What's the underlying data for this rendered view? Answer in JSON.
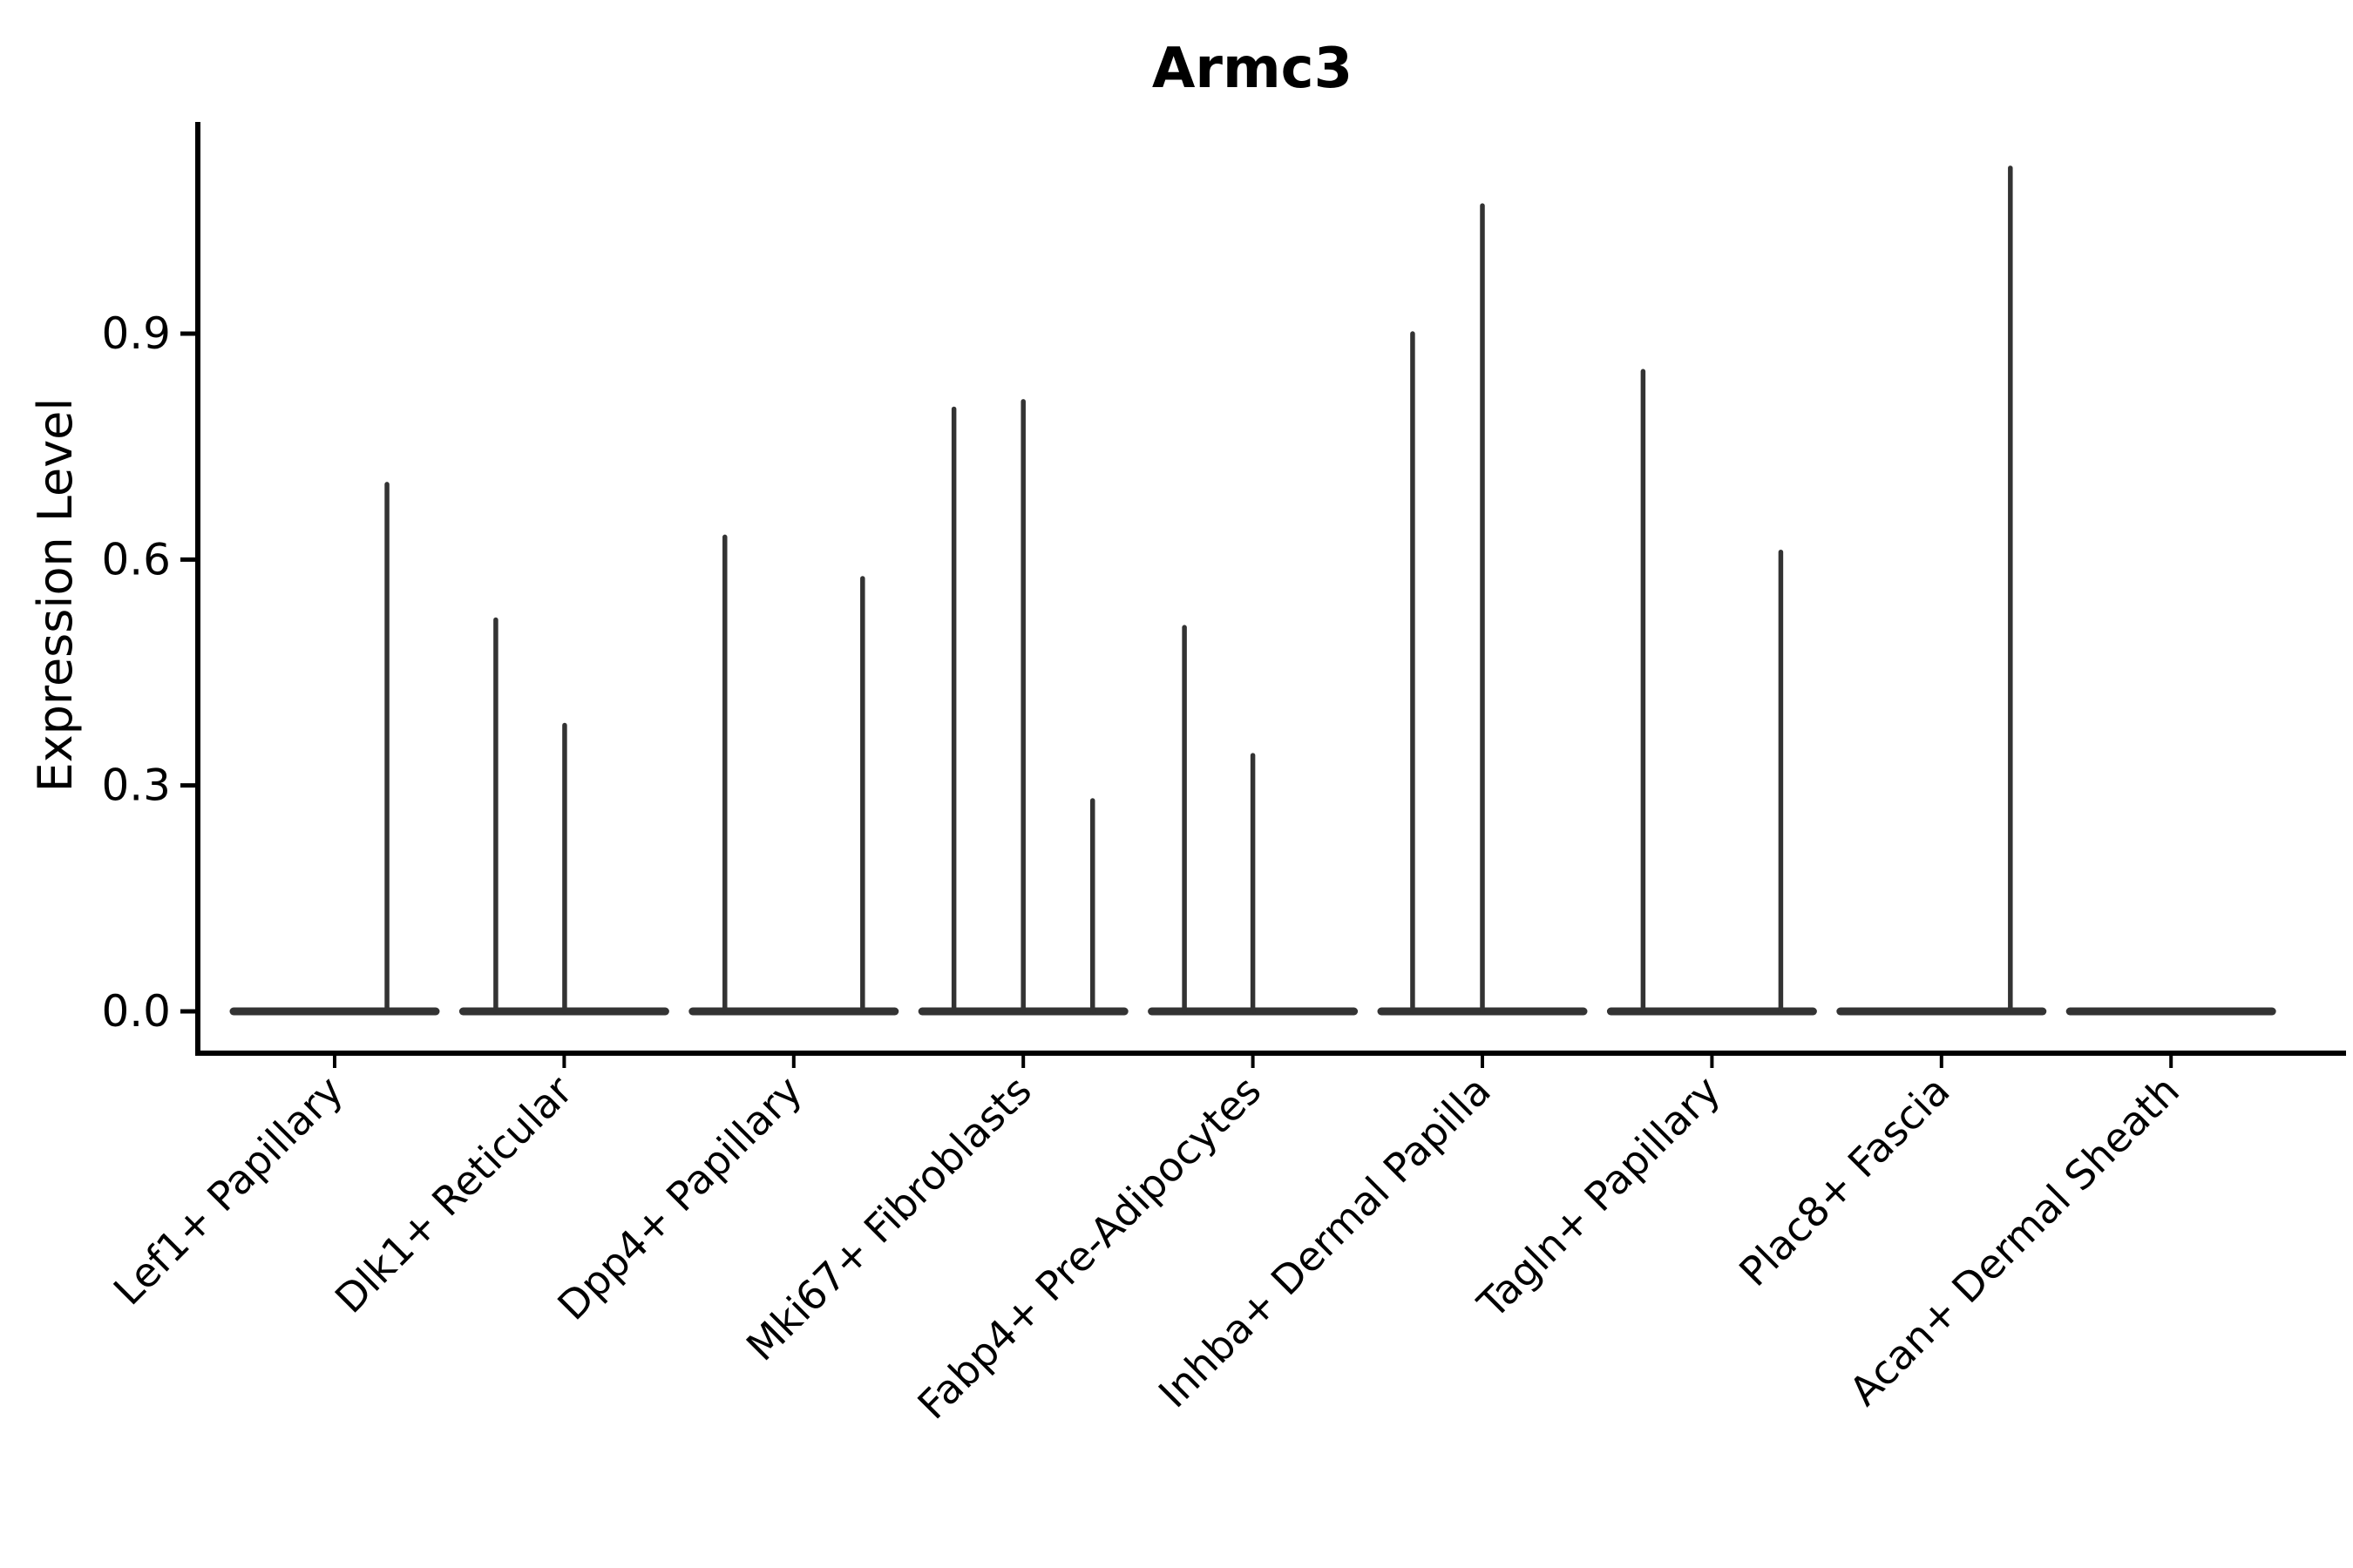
{
  "chart_data": {
    "type": "violin",
    "title": "Armc3",
    "ylabel": "Expression Level",
    "xlabel": "",
    "legend": "none",
    "grid": false,
    "ylim": [
      -0.055,
      1.18
    ],
    "yticks": [
      {
        "label": "0.0",
        "value": 0.0
      },
      {
        "label": "0.3",
        "value": 0.3
      },
      {
        "label": "0.6",
        "value": 0.6
      },
      {
        "label": "0.9",
        "value": 0.9
      }
    ],
    "categories": [
      "Lef1+ Papillary",
      "Dlk1+ Reticular",
      "Dpp4+ Papillary",
      "Mki67+ Fibroblasts",
      "Fabp4+ Pre-Adipocytes",
      "Inhba+ Dermal Papilla",
      "Tagln+ Papillary",
      "Plac8+ Fascia",
      "Acan+ Dermal Sheath"
    ],
    "groups": [
      {
        "category": "Lef1+ Papillary",
        "base_value": 0.0,
        "spikes": [
          {
            "dx": 0.228,
            "value": 0.7
          }
        ]
      },
      {
        "category": "Dlk1+ Reticular",
        "base_value": 0.0,
        "spikes": [
          {
            "dx": -0.298,
            "value": 0.52
          },
          {
            "dx": 0.002,
            "value": 0.38
          }
        ]
      },
      {
        "category": "Dpp4+ Papillary",
        "base_value": 0.0,
        "spikes": [
          {
            "dx": -0.3,
            "value": 0.63
          },
          {
            "dx": 0.3,
            "value": 0.575
          }
        ]
      },
      {
        "category": "Mki67+ Fibroblasts",
        "base_value": 0.0,
        "spikes": [
          {
            "dx": -0.302,
            "value": 0.8
          },
          {
            "dx": 0.0,
            "value": 0.81
          },
          {
            "dx": 0.302,
            "value": 0.28
          }
        ]
      },
      {
        "category": "Fabp4+ Pre-Adipocytes",
        "base_value": 0.0,
        "spikes": [
          {
            "dx": -0.298,
            "value": 0.51
          },
          {
            "dx": 0.0,
            "value": 0.34
          }
        ]
      },
      {
        "category": "Inhba+ Dermal Papilla",
        "base_value": 0.0,
        "spikes": [
          {
            "dx": -0.304,
            "value": 0.9
          },
          {
            "dx": 0.0,
            "value": 1.07
          }
        ]
      },
      {
        "category": "Tagln+ Papillary",
        "base_value": 0.0,
        "spikes": [
          {
            "dx": -0.3,
            "value": 0.85
          },
          {
            "dx": 0.3,
            "value": 0.61
          }
        ]
      },
      {
        "category": "Plac8+ Fascia",
        "base_value": 0.0,
        "spikes": [
          {
            "dx": 0.3,
            "value": 1.12
          }
        ]
      },
      {
        "category": "Acan+ Dermal Sheath",
        "base_value": 0.0,
        "spikes": []
      }
    ],
    "colors": {
      "axis": "#000000",
      "violin": "#333333",
      "text": "#000000",
      "background": "#ffffff"
    }
  }
}
